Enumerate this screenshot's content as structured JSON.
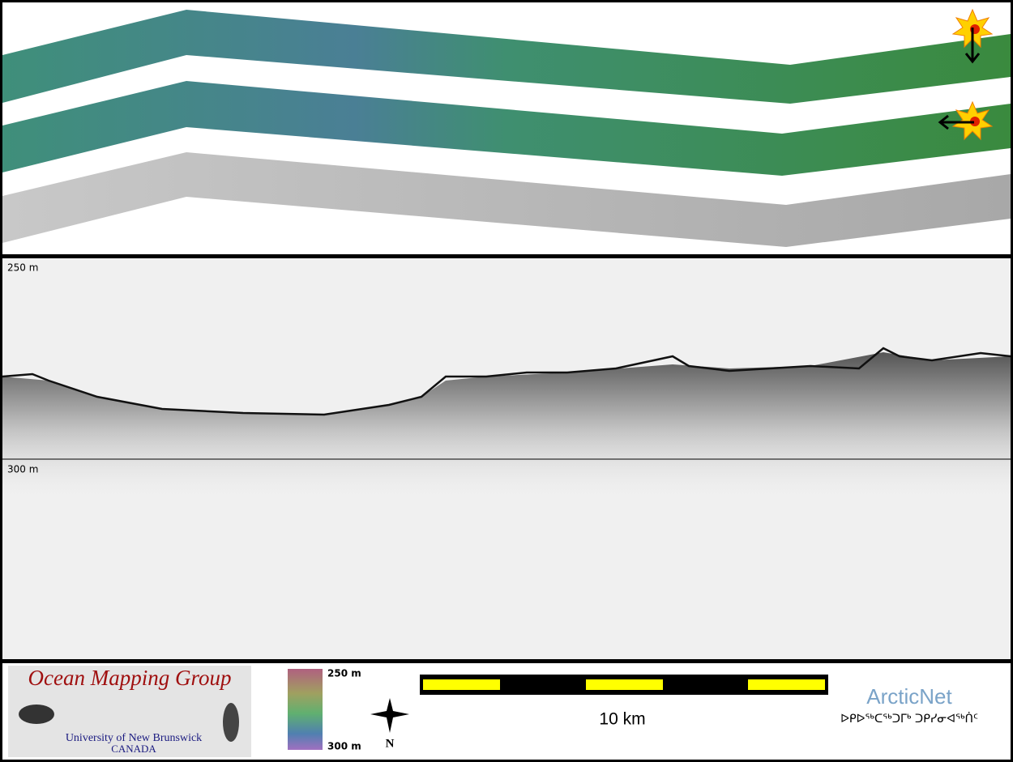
{
  "profile": {
    "top_depth": "250 m",
    "bottom_depth": "300 m"
  },
  "logo": {
    "title": "Ocean Mapping Group",
    "university": "University of New Brunswick",
    "country": "CANADA"
  },
  "colorbar": {
    "top": "250 m",
    "bottom": "300 m"
  },
  "north": "N",
  "scale_bar": "10 km",
  "partner": {
    "name": "ArcticNet",
    "syllabics": "ᐅᑭᐅᖅᑕᖅᑐᒥᒃ ᑐᑭᓯᓂᐊᖅᑏᑦ"
  }
}
